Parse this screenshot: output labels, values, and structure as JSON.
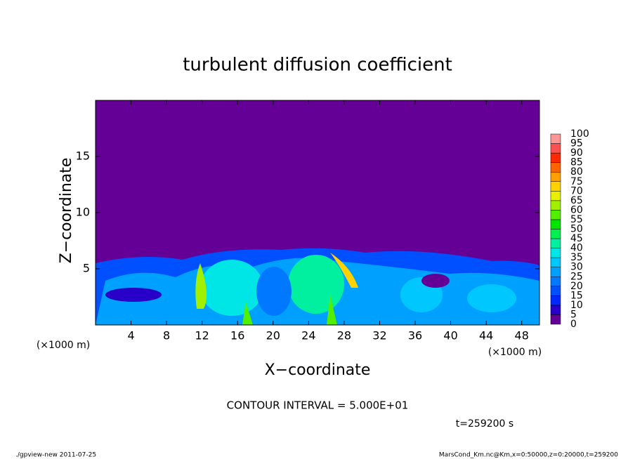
{
  "chart_data": {
    "type": "contour",
    "title": "turbulent diffusion coefficient",
    "xlabel": "X−coordinate",
    "ylabel": "Z−coordinate",
    "x_unit": "(×1000 m)",
    "y_unit": "(×1000 m)",
    "xlim": [
      0,
      50
    ],
    "ylim": [
      0,
      20
    ],
    "xticks": [
      4,
      8,
      12,
      16,
      20,
      24,
      28,
      32,
      36,
      40,
      44,
      48
    ],
    "yticks": [
      5,
      10,
      15
    ],
    "colorbar": {
      "levels": [
        0,
        5,
        10,
        15,
        20,
        25,
        30,
        35,
        40,
        45,
        50,
        55,
        60,
        65,
        70,
        75,
        80,
        85,
        90,
        95,
        100
      ],
      "colors": [
        "#640096",
        "#2800c8",
        "#0028ff",
        "#0050ff",
        "#0078ff",
        "#00a0ff",
        "#00c8ff",
        "#00e6e6",
        "#00f0a0",
        "#00f050",
        "#00e600",
        "#50f000",
        "#a0f000",
        "#e6f000",
        "#ffd200",
        "#ffa000",
        "#ff6400",
        "#ff2800",
        "#ff5050",
        "#ff9696"
      ]
    },
    "contour_note": "CONTOUR INTERVAL = 5.000E+01",
    "time_label": "t=259200 s",
    "footer_left": "./gpview-new  2011-07-25",
    "footer_right": "MarsCond_Km.nc@Km,x=0:50000,z=0:20000,t=259200"
  }
}
